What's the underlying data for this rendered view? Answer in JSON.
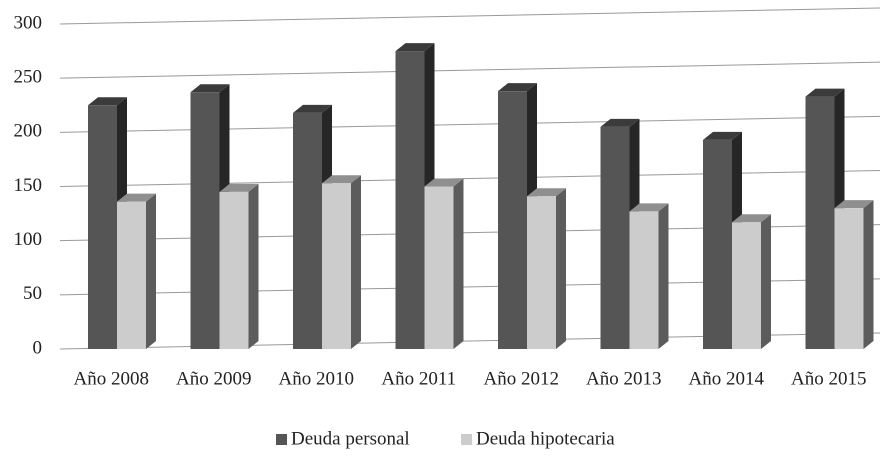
{
  "chart_data": {
    "type": "bar3d",
    "categories": [
      "Año 2008",
      "Año 2009",
      "Año 2010",
      "Año 2011",
      "Año 2012",
      "Año 2013",
      "Año 2014",
      "Año 2015"
    ],
    "series": [
      {
        "name": "Deuda personal",
        "color": "#555555",
        "values": [
          225,
          237,
          218,
          275,
          238,
          205,
          193,
          233
        ]
      },
      {
        "name": "Deuda hipotecaria",
        "color": "#cccccc",
        "values": [
          136,
          145,
          153,
          150,
          141,
          127,
          117,
          130
        ]
      }
    ],
    "ylim": [
      0,
      300
    ],
    "yticks": [
      0,
      50,
      100,
      150,
      200,
      250,
      300
    ],
    "grid": true,
    "legend": "bottom"
  }
}
